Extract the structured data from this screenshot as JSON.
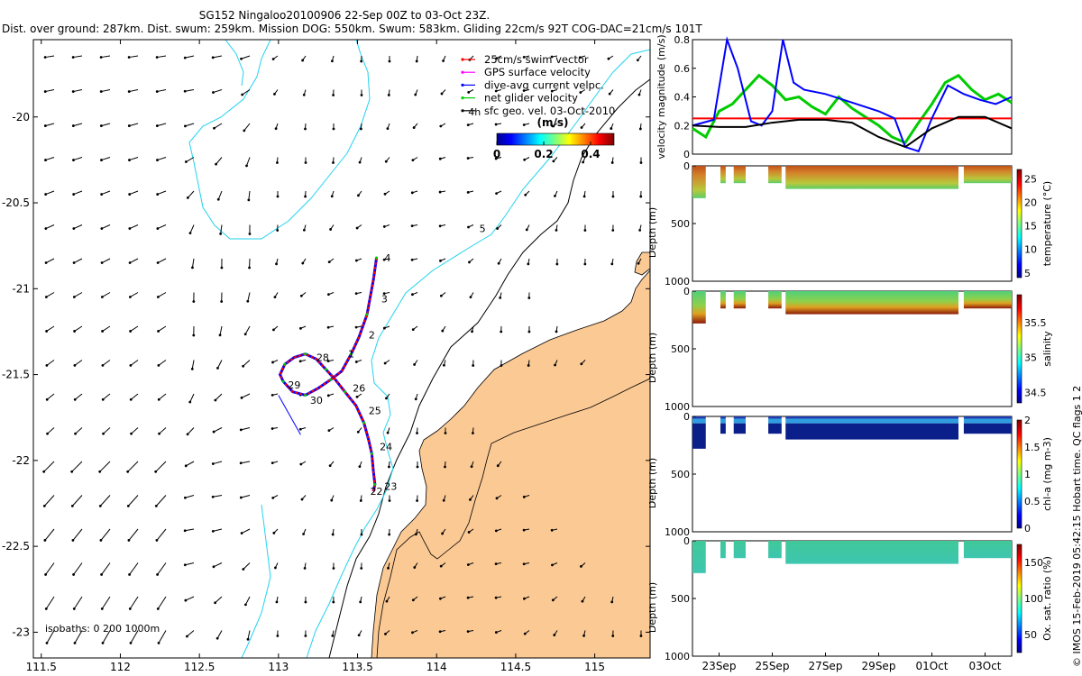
{
  "header": {
    "title_line1": "SG152 Ningaloo20100906 22-Sep 00Z to 03-Oct 23Z.",
    "title_line2": "Dist. over ground: 287km. Dist. swum: 259km. Mission DOG: 550km. Swum: 583km. Gliding 22cm/s 92T COG-DAC=21cm/s 101T"
  },
  "side_credit": "© IMOS 15-Feb-2019 05:42:15 Hobart time. QC flags 1  2",
  "colors": {
    "land": "#fbc994",
    "isobath_200": "#22d3ee",
    "swim": "#ff0000",
    "gps": "#ff00ff",
    "dac": "#0000ff",
    "net": "#00cc00",
    "geo": "#000000"
  },
  "chart_data": [
    {
      "type": "scatter",
      "id": "track_map",
      "xlabel": "",
      "ylabel": "",
      "xlim": [
        111.45,
        115.35
      ],
      "ylim": [
        -23.15,
        -19.55
      ],
      "xticks": [
        "111.5",
        "112",
        "112.5",
        "113",
        "113.5",
        "114",
        "114.5",
        "115"
      ],
      "xtick_values": [
        111.5,
        112,
        112.5,
        113,
        113.5,
        114,
        114.5,
        115
      ],
      "yticks": [
        "-20",
        "-20.5",
        "-21",
        "-21.5",
        "-22",
        "-22.5",
        "-23"
      ],
      "ytick_values": [
        -20,
        -20.5,
        -21,
        -21.5,
        -22,
        -22.5,
        -23
      ],
      "legend": [
        {
          "label": "25cm/s swim vector",
          "color": "#ff0000"
        },
        {
          "label": "GPS surface velocity",
          "color": "#ff00ff"
        },
        {
          "label": "dive-avg current velpc.",
          "color": "#0000ff"
        },
        {
          "label": "net glider velocity",
          "color": "#00cc00"
        },
        {
          "label": "sfc geo. vel. 03-Oct-2010",
          "color": "#000000"
        }
      ],
      "colorbar_title": "(m/s)",
      "colorbar_ticks": [
        "0",
        "0.2",
        "0.4"
      ],
      "colorbar_tick_values": [
        0,
        0.2,
        0.4
      ],
      "colorbar_range": [
        0,
        0.5
      ],
      "isobath_label": "isobaths: 0   200  1000m",
      "track": {
        "lon": [
          113.62,
          113.6,
          113.56,
          113.51,
          113.46,
          113.4,
          113.33,
          113.25,
          113.17,
          113.09,
          113.03,
          113.01,
          113.04,
          113.1,
          113.17,
          113.24,
          113.3,
          113.36,
          113.42,
          113.49,
          113.54,
          113.57,
          113.59,
          113.6,
          113.61,
          113.6
        ],
        "lat": [
          -20.82,
          -20.95,
          -21.15,
          -21.28,
          -21.38,
          -21.48,
          -21.53,
          -21.58,
          -21.62,
          -21.6,
          -21.54,
          -21.5,
          -21.44,
          -21.4,
          -21.38,
          -21.41,
          -21.47,
          -21.53,
          -21.6,
          -21.68,
          -21.78,
          -21.88,
          -21.96,
          -22.06,
          -22.14,
          -22.18
        ]
      },
      "track_labels": [
        {
          "text": "4",
          "lon": 113.67,
          "lat": -20.84
        },
        {
          "text": "3",
          "lon": 113.65,
          "lat": -21.08
        },
        {
          "text": "2",
          "lon": 113.57,
          "lat": -21.29
        },
        {
          "text": "1",
          "lon": 113.44,
          "lat": -21.4
        },
        {
          "text": "28",
          "lon": 113.24,
          "lat": -21.42
        },
        {
          "text": "29",
          "lon": 113.06,
          "lat": -21.58
        },
        {
          "text": "30",
          "lon": 113.2,
          "lat": -21.67
        },
        {
          "text": "26",
          "lon": 113.47,
          "lat": -21.6
        },
        {
          "text": "25",
          "lon": 113.57,
          "lat": -21.73
        },
        {
          "text": "24",
          "lon": 113.64,
          "lat": -21.94
        },
        {
          "text": "23",
          "lon": 113.67,
          "lat": -22.17
        },
        {
          "text": "22",
          "lon": 113.58,
          "lat": -22.2
        },
        {
          "text": "5",
          "lon": 114.27,
          "lat": -20.67
        },
        {
          "text": "4h",
          "lon": 114.2,
          "lat": -19.99
        }
      ]
    },
    {
      "type": "line",
      "id": "velocity_panel",
      "title": "",
      "xlabel": "",
      "ylabel": "velocity magnitude (m/s)",
      "xlim": [
        0,
        12
      ],
      "ylim": [
        0,
        0.8
      ],
      "yticks": [
        "0",
        "0.2",
        "0.4",
        "0.6",
        "0.8"
      ],
      "ytick_values": [
        0,
        0.2,
        0.4,
        0.6,
        0.8
      ],
      "series": [
        {
          "name": "swim",
          "color": "#ff0000",
          "x": [
            0,
            1,
            2,
            3,
            4,
            5,
            6,
            7,
            8,
            9,
            10,
            11,
            12
          ],
          "y": [
            0.25,
            0.25,
            0.25,
            0.25,
            0.25,
            0.25,
            0.25,
            0.25,
            0.25,
            0.25,
            0.25,
            0.25,
            0.25
          ]
        },
        {
          "name": "geostrophic",
          "color": "#000000",
          "x": [
            0,
            1,
            2,
            3,
            4,
            5,
            6,
            7,
            8,
            9,
            10,
            11,
            12
          ],
          "y": [
            0.2,
            0.19,
            0.19,
            0.22,
            0.24,
            0.24,
            0.22,
            0.12,
            0.05,
            0.18,
            0.26,
            0.26,
            0.18
          ]
        },
        {
          "name": "dac",
          "color": "#0000ff",
          "x": [
            0,
            0.8,
            1.3,
            1.7,
            2.2,
            2.6,
            3.0,
            3.4,
            3.8,
            4.2,
            5,
            6,
            7,
            7.6,
            8,
            8.5,
            9,
            9.6,
            10.2,
            10.8,
            11.4,
            12
          ],
          "y": [
            0.2,
            0.24,
            0.8,
            0.6,
            0.23,
            0.2,
            0.3,
            0.8,
            0.5,
            0.45,
            0.42,
            0.36,
            0.3,
            0.25,
            0.05,
            0.02,
            0.25,
            0.48,
            0.42,
            0.38,
            0.35,
            0.4
          ]
        },
        {
          "name": "net",
          "color": "#00cc00",
          "x": [
            0,
            0.5,
            1,
            1.5,
            2,
            2.5,
            3,
            3.5,
            4,
            4.5,
            5,
            5.5,
            6,
            6.5,
            7,
            7.5,
            8,
            8.5,
            9,
            9.5,
            10,
            10.5,
            11,
            11.5,
            12
          ],
          "y": [
            0.18,
            0.12,
            0.3,
            0.35,
            0.45,
            0.55,
            0.48,
            0.38,
            0.4,
            0.33,
            0.28,
            0.4,
            0.32,
            0.26,
            0.2,
            0.12,
            0.08,
            0.22,
            0.35,
            0.5,
            0.55,
            0.45,
            0.38,
            0.42,
            0.36
          ]
        }
      ]
    },
    {
      "type": "heatmap",
      "id": "temperature_panel",
      "ylabel": "Depth (m)",
      "ylim": [
        0,
        1000
      ],
      "yticks": [
        "0",
        "500",
        "1000"
      ],
      "ytick_values": [
        0,
        500,
        1000
      ],
      "colorbar_label": "temperature (°C)",
      "colorbar_ticks": [
        "5",
        "10",
        "15",
        "20",
        "25"
      ],
      "colorbar_tick_values": [
        5,
        10,
        15,
        20,
        25
      ],
      "colorbar_range": [
        4,
        27
      ]
    },
    {
      "type": "heatmap",
      "id": "salinity_panel",
      "ylabel": "Depth (m)",
      "ylim": [
        0,
        1000
      ],
      "yticks": [
        "0",
        "500",
        "1000"
      ],
      "ytick_values": [
        0,
        500,
        1000
      ],
      "colorbar_label": "salinity",
      "colorbar_ticks": [
        "34.5",
        "35",
        "35.5"
      ],
      "colorbar_tick_values": [
        34.5,
        35,
        35.5
      ],
      "colorbar_range": [
        34.35,
        35.9
      ]
    },
    {
      "type": "heatmap",
      "id": "chla_panel",
      "ylabel": "Depth (m)",
      "ylim": [
        0,
        1000
      ],
      "yticks": [
        "0",
        "500",
        "1000"
      ],
      "ytick_values": [
        0,
        500,
        1000
      ],
      "colorbar_label": "chl-a (mg m-3)",
      "colorbar_ticks": [
        "0",
        "0.5",
        "1",
        "1.5",
        "2"
      ],
      "colorbar_tick_values": [
        0,
        0.5,
        1,
        1.5,
        2
      ],
      "colorbar_range": [
        0,
        2
      ]
    },
    {
      "type": "heatmap",
      "id": "oxygen_panel",
      "ylabel": "Depth (m)",
      "ylim": [
        0,
        1000
      ],
      "yticks": [
        "0",
        "500",
        "1000"
      ],
      "ytick_values": [
        0,
        500,
        1000
      ],
      "colorbar_label": "Ox. sat. ratio (%)",
      "colorbar_ticks": [
        "50",
        "100",
        "150"
      ],
      "colorbar_tick_values": [
        50,
        100,
        150
      ],
      "colorbar_range": [
        25,
        175
      ],
      "xticks": [
        "23Sep",
        "25Sep",
        "27Sep",
        "29Sep",
        "01Oct",
        "03Oct"
      ],
      "xtick_values": [
        1,
        3,
        5,
        7,
        9,
        11
      ]
    }
  ]
}
